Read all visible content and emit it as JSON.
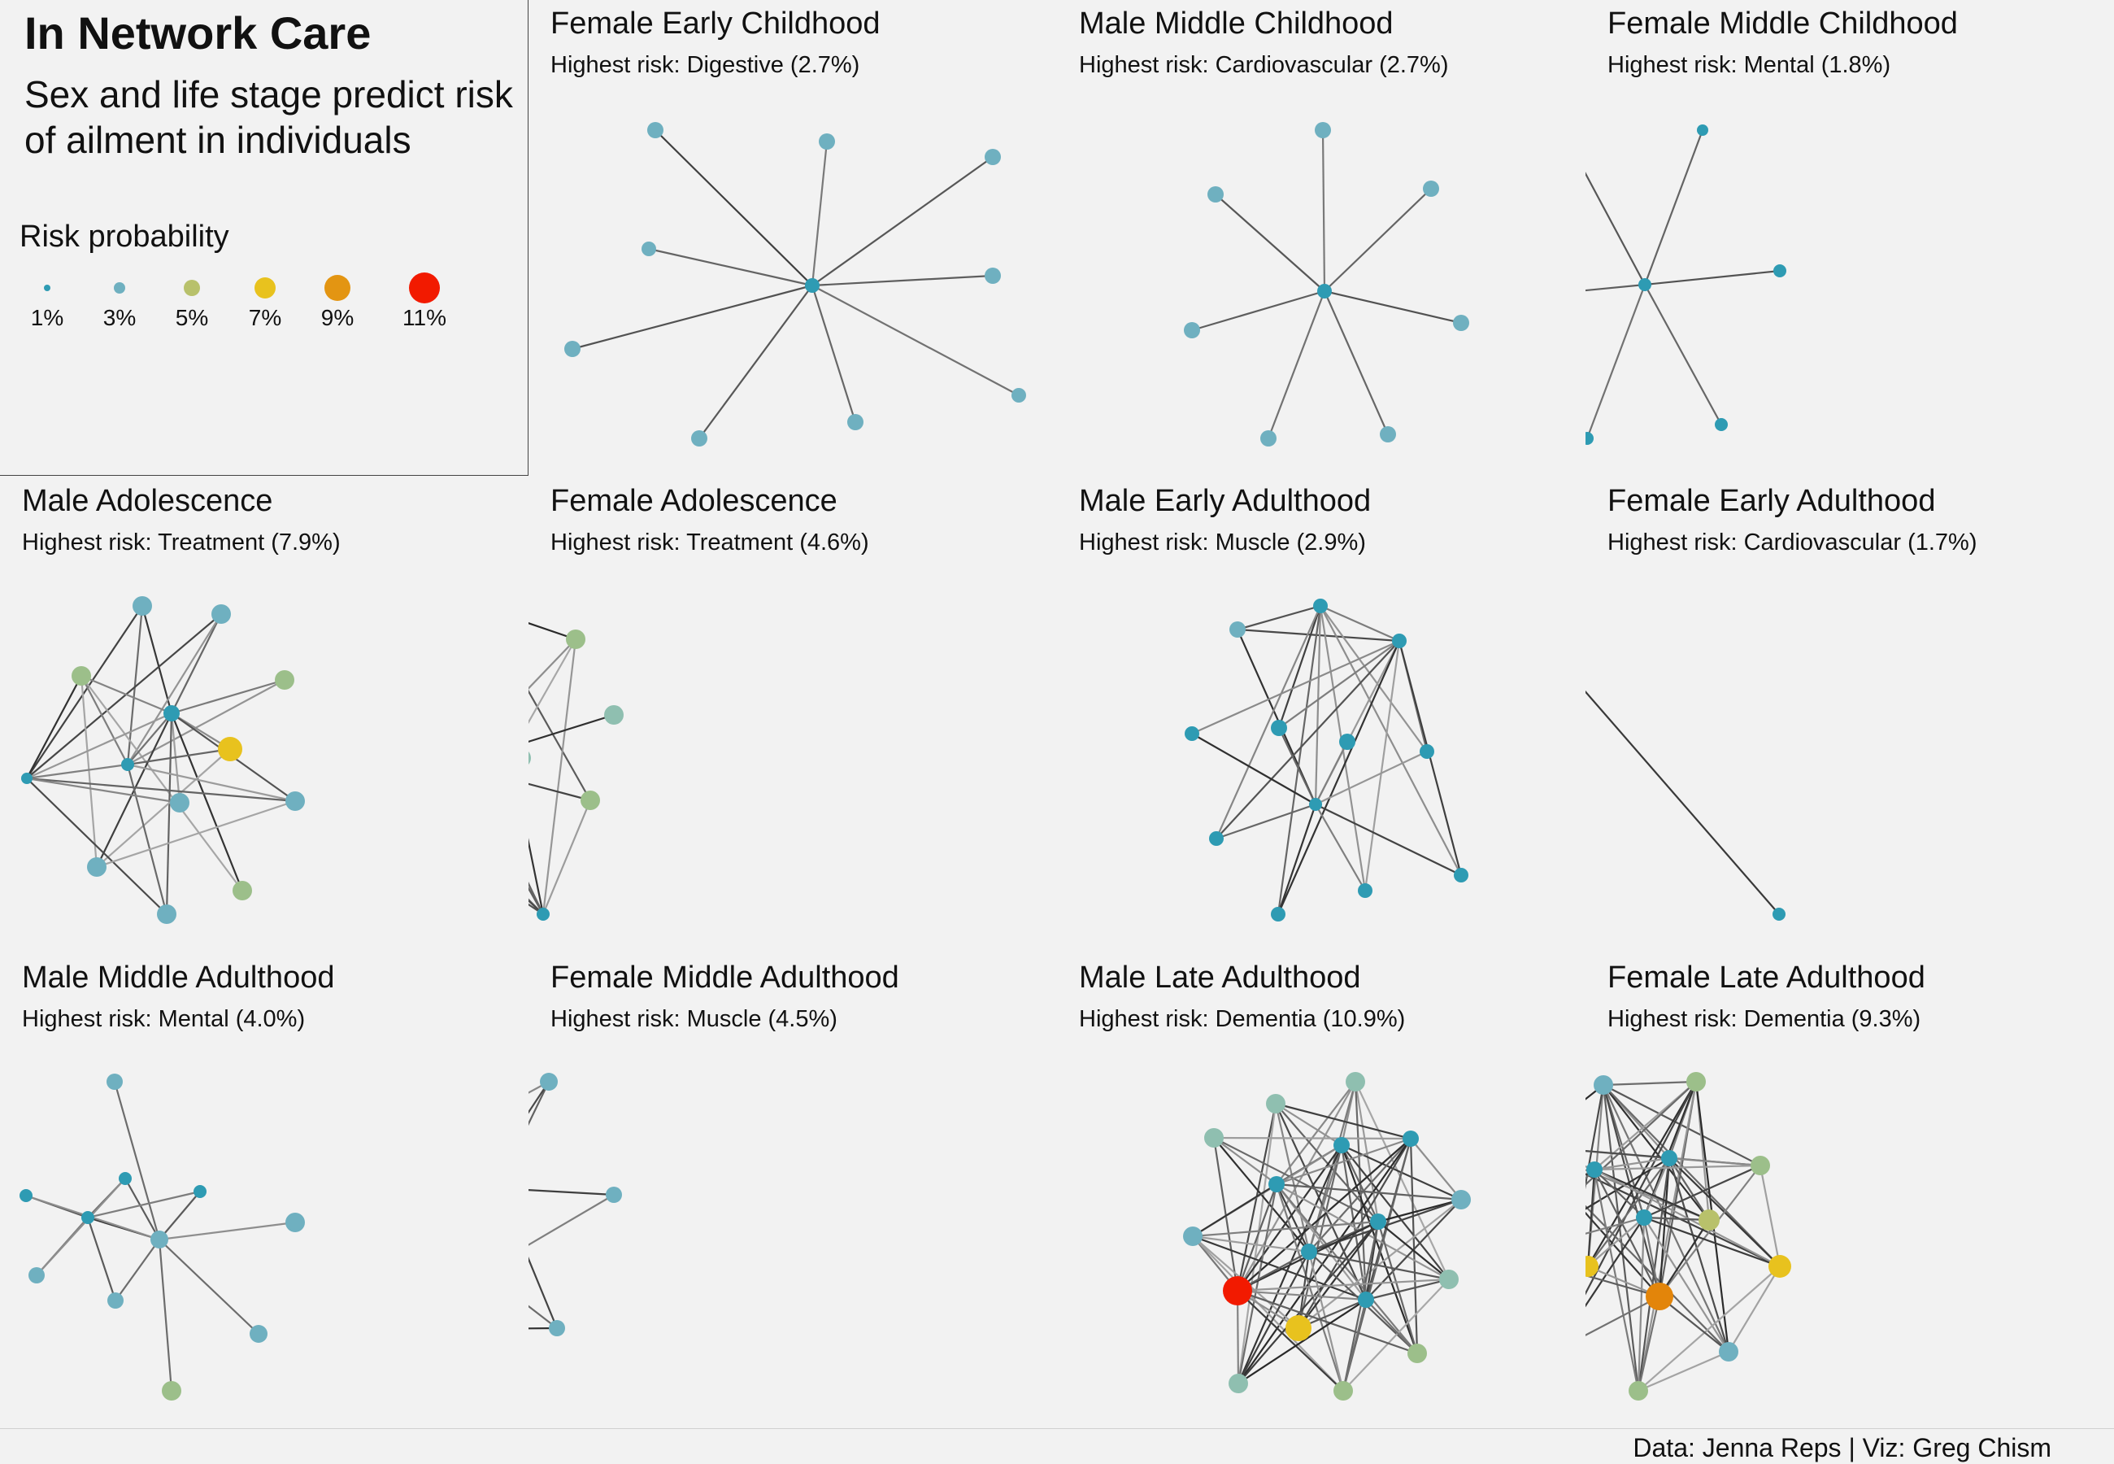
{
  "header": {
    "title": "In Network Care",
    "subtitle": "Sex and life stage predict risk of ailment in individuals"
  },
  "legend": {
    "title": "Risk probability",
    "items": [
      {
        "label": "1%",
        "value": 1,
        "color": "#2e9bb3"
      },
      {
        "label": "3%",
        "value": 3,
        "color": "#6fb0c0"
      },
      {
        "label": "5%",
        "value": 5,
        "color": "#b8c16b"
      },
      {
        "label": "7%",
        "value": 7,
        "color": "#e8c21e"
      },
      {
        "label": "9%",
        "value": 9,
        "color": "#e39512"
      },
      {
        "label": "11%",
        "value": 11,
        "color": "#f21a00"
      }
    ]
  },
  "footer": {
    "credit": "Data: Jenna Reps | Viz: Greg Chism"
  },
  "chart_data": {
    "type": "network",
    "panels": [
      {
        "title": "Female Early Childhood",
        "subtitle": "Highest risk: Digestive (2.7%)"
      },
      {
        "title": "Male Middle Childhood",
        "subtitle": "Highest risk: Cardiovascular (2.7%)"
      },
      {
        "title": "Female Middle Childhood",
        "subtitle": "Highest risk: Mental (1.8%)"
      },
      {
        "title": "Male Adolescence",
        "subtitle": "Highest risk: Treatment (7.9%)"
      },
      {
        "title": "Female Adolescence",
        "subtitle": "Highest risk: Treatment (4.6%)"
      },
      {
        "title": "Male Early Adulthood",
        "subtitle": "Highest risk: Muscle (2.9%)"
      },
      {
        "title": "Female Early Adulthood",
        "subtitle": "Highest risk: Cardiovascular (1.7%)"
      },
      {
        "title": "Male Middle Adulthood",
        "subtitle": "Highest risk: Mental (4.0%)"
      },
      {
        "title": "Female Middle Adulthood",
        "subtitle": "Highest risk: Muscle (4.5%)"
      },
      {
        "title": "Male Late Adulthood",
        "subtitle": "Highest risk: Dementia (10.9%)"
      },
      {
        "title": "Female Late Adulthood",
        "subtitle": "Highest risk: Dementia (9.3%)"
      }
    ]
  }
}
